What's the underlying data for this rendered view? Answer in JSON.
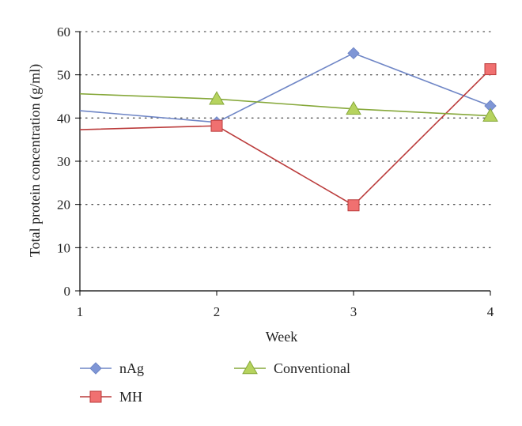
{
  "chart_data": {
    "type": "line",
    "xlabel": "Week",
    "ylabel": "Total protein concentration (g/ml)",
    "x_ticks": [
      "1",
      "2",
      "3",
      "4"
    ],
    "y_ticks": [
      "0",
      "10",
      "20",
      "30",
      "40",
      "50",
      "60"
    ],
    "xlim": [
      1,
      4
    ],
    "ylim": [
      0,
      60
    ],
    "grid": "horizontal-dotted",
    "legend_position": "bottom",
    "series": [
      {
        "name": "nAg",
        "x": [
          1,
          2,
          3,
          4
        ],
        "values": [
          41.7,
          39.0,
          55.0,
          42.8
        ],
        "color": "#6f86c6",
        "marker": "diamond",
        "marker_color": "#7f96d6",
        "first_marker_shown": false
      },
      {
        "name": "MH",
        "x": [
          1,
          2,
          3,
          4
        ],
        "values": [
          37.3,
          38.2,
          19.8,
          51.3
        ],
        "color": "#bb3c3c",
        "marker": "square",
        "marker_color": "#f07070",
        "first_marker_shown": false
      },
      {
        "name": "Conventional",
        "x": [
          1,
          2,
          3,
          4
        ],
        "values": [
          45.6,
          44.4,
          42.1,
          40.5
        ],
        "color": "#86a83a",
        "marker": "triangle",
        "marker_color": "#b6d35e",
        "first_marker_shown": false
      }
    ]
  }
}
